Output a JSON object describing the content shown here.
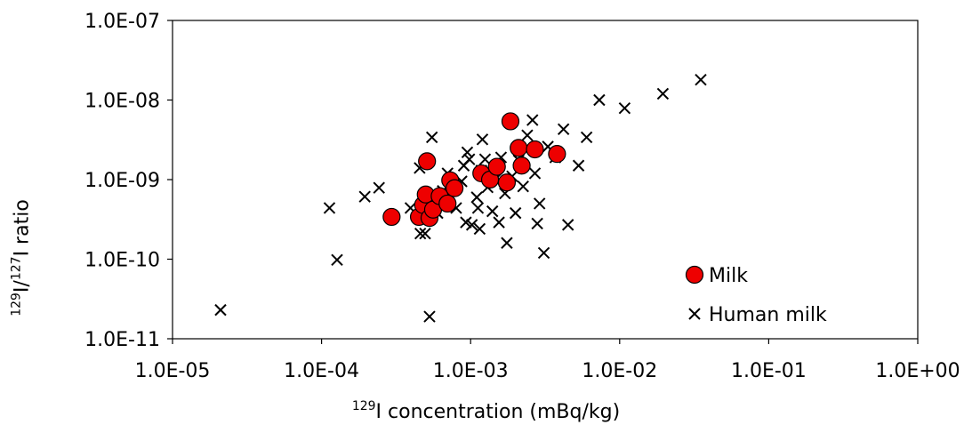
{
  "chart_data": {
    "type": "scatter",
    "title": "",
    "xlabel": {
      "sup": "129",
      "text": "I concentration (mBq/kg)"
    },
    "ylabel": {
      "sup1": "129",
      "mid": "I/",
      "sup2": "127",
      "end": "I ratio"
    },
    "x_scale": "log",
    "y_scale": "log",
    "xlim": [
      1e-05,
      1
    ],
    "ylim": [
      1e-11,
      1e-07
    ],
    "x_ticks": [
      1e-05,
      0.0001,
      0.001,
      0.01,
      0.1,
      1
    ],
    "x_tick_labels": [
      "1.0E-05",
      "1.0E-04",
      "1.0E-03",
      "1.0E-02",
      "1.0E-01",
      "1.0E+00"
    ],
    "y_ticks": [
      1e-11,
      1e-10,
      1e-09,
      1e-08,
      1e-07
    ],
    "y_tick_labels": [
      "1.0E-11",
      "1.0E-10",
      "1.0E-09",
      "1.0E-08",
      "1.0E-07"
    ],
    "grid": false,
    "legend_position": "bottom-right",
    "series": [
      {
        "name": "Milk",
        "marker": "circle",
        "color": "#ee0000",
        "points": [
          [
            0.000295,
            3.4e-10
          ],
          [
            0.00045,
            3.4e-10
          ],
          [
            0.00048,
            4.8e-10
          ],
          [
            0.0005,
            6.5e-10
          ],
          [
            0.00051,
            1.7e-09
          ],
          [
            0.00053,
            3.3e-10
          ],
          [
            0.00056,
            4.2e-10
          ],
          [
            0.00062,
            6.2e-10
          ],
          [
            0.0007,
            5e-10
          ],
          [
            0.00073,
            9.8e-10
          ],
          [
            0.00078,
            7.8e-10
          ],
          [
            0.00118,
            1.2e-09
          ],
          [
            0.00135,
            1e-09
          ],
          [
            0.0015,
            1.45e-09
          ],
          [
            0.00175,
            9.2e-10
          ],
          [
            0.00185,
            5.4e-09
          ],
          [
            0.0021,
            2.5e-09
          ],
          [
            0.0022,
            1.5e-09
          ],
          [
            0.0027,
            2.4e-09
          ],
          [
            0.0038,
            2.1e-09
          ]
        ]
      },
      {
        "name": "Human milk",
        "marker": "x",
        "color": "#000000",
        "points": [
          [
            2.1e-05,
            2.3e-11
          ],
          [
            0.000113,
            4.4e-10
          ],
          [
            0.000127,
            9.8e-11
          ],
          [
            0.000195,
            6.1e-10
          ],
          [
            0.000243,
            7.9e-10
          ],
          [
            0.000395,
            4.4e-10
          ],
          [
            0.000455,
            1.4e-09
          ],
          [
            0.00046,
            2.1e-10
          ],
          [
            0.000495,
            2.1e-10
          ],
          [
            0.00053,
            1.9e-11
          ],
          [
            0.00055,
            3.4e-09
          ],
          [
            0.0006,
            3.8e-10
          ],
          [
            0.00065,
            7.2e-10
          ],
          [
            0.0007,
            1.2e-09
          ],
          [
            0.0008,
            4.4e-10
          ],
          [
            0.00087,
            9.5e-10
          ],
          [
            0.0009,
            1.5e-09
          ],
          [
            0.00093,
            2.9e-10
          ],
          [
            0.00095,
            2.2e-09
          ],
          [
            0.00098,
            1.8e-09
          ],
          [
            0.00102,
            2.7e-10
          ],
          [
            0.0011,
            6e-10
          ],
          [
            0.00112,
            4.4e-10
          ],
          [
            0.00115,
            2.4e-10
          ],
          [
            0.00118,
            1.3e-09
          ],
          [
            0.0012,
            3.2e-09
          ],
          [
            0.00125,
            1.8e-09
          ],
          [
            0.0013,
            8e-10
          ],
          [
            0.0014,
            4e-10
          ],
          [
            0.0015,
            1.05e-09
          ],
          [
            0.00155,
            2.9e-10
          ],
          [
            0.0016,
            1.9e-09
          ],
          [
            0.0017,
            6.7e-10
          ],
          [
            0.00175,
            1.6e-10
          ],
          [
            0.0019,
            1.1e-09
          ],
          [
            0.002,
            3.8e-10
          ],
          [
            0.0021,
            1.75e-09
          ],
          [
            0.00225,
            8.2e-10
          ],
          [
            0.0024,
            3.6e-09
          ],
          [
            0.0026,
            5.6e-09
          ],
          [
            0.0027,
            1.2e-09
          ],
          [
            0.0028,
            2.8e-10
          ],
          [
            0.0029,
            5e-10
          ],
          [
            0.0031,
            1.2e-10
          ],
          [
            0.0033,
            2.6e-09
          ],
          [
            0.0037,
            1.9e-09
          ],
          [
            0.0042,
            4.3e-09
          ],
          [
            0.0045,
            2.7e-10
          ],
          [
            0.0053,
            1.5e-09
          ],
          [
            0.006,
            3.4e-09
          ],
          [
            0.0073,
            1e-08
          ],
          [
            0.0108,
            7.9e-09
          ],
          [
            0.0195,
            1.2e-08
          ],
          [
            0.035,
            1.8e-08
          ]
        ]
      }
    ]
  }
}
